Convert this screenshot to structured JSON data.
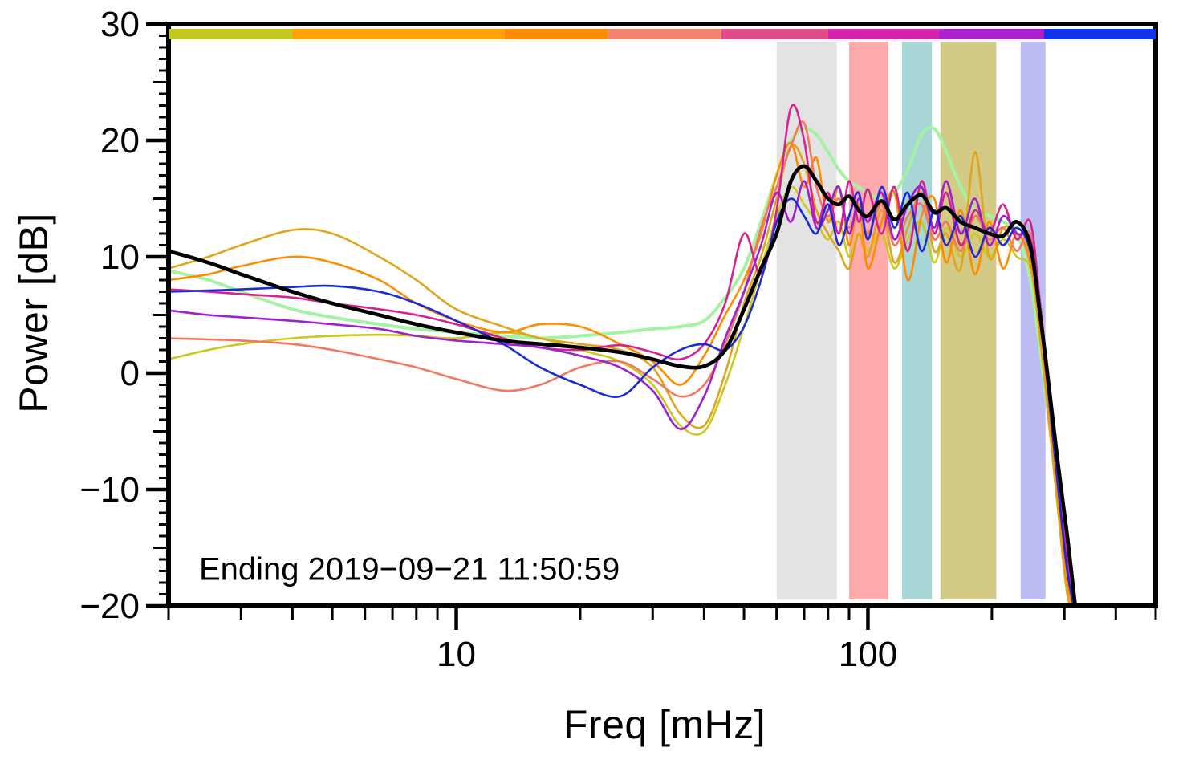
{
  "figure": {
    "xlabel": "Freq [mHz]",
    "ylabel": "Power [dB]",
    "annotation": "Ending 2019−09−21 11:50:59"
  },
  "chart_data": {
    "type": "line",
    "xscale": "log",
    "xlim": [
      2,
      500
    ],
    "ylim": [
      -20,
      30
    ],
    "xlabel": "Freq [mHz]",
    "ylabel": "Power [dB]",
    "annotation": "Ending 2019−09−21 11:50:59",
    "grid": false,
    "legend": "none",
    "x_ticks_labeled": [
      10,
      100
    ],
    "y_ticks_labeled": [
      30,
      20,
      10,
      0,
      -10,
      -20
    ],
    "x": [
      2,
      2.5,
      3,
      4,
      5,
      6.5,
      8,
      10,
      13,
      16,
      20,
      25,
      30,
      35,
      40,
      45,
      50,
      55,
      60,
      65,
      70,
      75,
      80,
      85,
      90,
      95,
      100,
      108,
      116,
      125,
      135,
      145,
      155,
      168,
      182,
      197,
      213,
      230,
      248,
      262,
      275,
      290,
      305,
      320
    ],
    "series": [
      {
        "name": "lightgreen",
        "color": "#a5f2a5",
        "width": 4,
        "y": [
          8.8,
          8.0,
          7.0,
          5.5,
          4.8,
          4.2,
          3.8,
          3.5,
          3.2,
          3.0,
          3.2,
          3.5,
          3.8,
          4.0,
          4.5,
          6.5,
          9.0,
          13.0,
          17.0,
          20.0,
          21.0,
          20.5,
          19.0,
          17.5,
          16.5,
          16.0,
          15.5,
          15.0,
          15.5,
          17.5,
          20.5,
          21.0,
          19.0,
          16.0,
          14.0,
          13.5,
          13.0,
          12.0,
          8.0,
          2.0,
          -4.0,
          -10,
          -16,
          -20.5
        ]
      },
      {
        "name": "yellow",
        "color": "#c9c91e",
        "width": 2.6,
        "y": [
          1.2,
          2.0,
          2.5,
          3.0,
          3.2,
          3.3,
          3.2,
          3.0,
          3.5,
          3.0,
          2.0,
          1.0,
          -1.0,
          -4.5,
          -5.0,
          -1.0,
          4.0,
          9.0,
          13.5,
          16.0,
          14.5,
          13.0,
          11.5,
          13.0,
          10.0,
          12.0,
          10.5,
          12.0,
          9.0,
          11.5,
          13.0,
          9.5,
          12.5,
          10.0,
          12.0,
          10.0,
          11.5,
          10.0,
          9.0,
          3.0,
          -4,
          -12,
          -19,
          -21
        ]
      },
      {
        "name": "goldenrod",
        "color": "#dfa51c",
        "width": 2.6,
        "y": [
          9.0,
          10.0,
          11.0,
          12.3,
          12.0,
          10.0,
          8.0,
          5.5,
          4.0,
          3.0,
          2.5,
          2.0,
          0.5,
          -3.5,
          -4.5,
          0.0,
          6.0,
          10.0,
          15.0,
          19.5,
          18.0,
          14.0,
          12.0,
          10.5,
          9.0,
          12.0,
          10.0,
          14.0,
          9.5,
          12.5,
          15.5,
          10.5,
          12.0,
          9.0,
          19.0,
          10.0,
          12.5,
          12.0,
          10.0,
          3.0,
          -4,
          -12,
          -19,
          -21
        ]
      },
      {
        "name": "orange",
        "color": "#ff8c00",
        "width": 2.6,
        "y": [
          8.0,
          8.5,
          9.2,
          10.0,
          9.5,
          8.0,
          6.0,
          4.5,
          3.5,
          4.2,
          4.0,
          2.5,
          1.0,
          -1.0,
          1.5,
          5.0,
          8.0,
          12.0,
          17.0,
          19.8,
          16.0,
          18.5,
          13.0,
          16.0,
          11.0,
          14.5,
          9.0,
          13.0,
          15.5,
          8.0,
          13.5,
          15.0,
          9.5,
          14.0,
          8.5,
          13.0,
          9.0,
          12.0,
          9.5,
          4.0,
          -3,
          -11,
          -18,
          -21
        ]
      },
      {
        "name": "salmon",
        "color": "#f2785f",
        "width": 2.6,
        "y": [
          3.0,
          2.9,
          2.8,
          2.5,
          2.0,
          1.2,
          0.5,
          -0.5,
          -1.5,
          -1.0,
          0.5,
          1.0,
          -0.5,
          -2.0,
          -1.0,
          2.5,
          7.0,
          12.5,
          16.0,
          19.5,
          21.5,
          16.0,
          13.5,
          15.0,
          12.5,
          14.0,
          12.0,
          14.5,
          11.0,
          13.5,
          14.5,
          11.5,
          13.0,
          10.5,
          13.5,
          11.5,
          12.5,
          10.5,
          12.0,
          5.0,
          -2,
          -10,
          -17,
          -21
        ]
      },
      {
        "name": "magenta",
        "color": "#d6218f",
        "width": 2.6,
        "y": [
          7.2,
          7.0,
          6.8,
          6.5,
          6.0,
          5.5,
          5.0,
          4.2,
          3.0,
          2.2,
          2.0,
          2.4,
          1.8,
          1.2,
          2.5,
          6.0,
          12.0,
          8.5,
          14.0,
          22.8,
          20.0,
          13.0,
          15.5,
          12.0,
          16.5,
          13.0,
          15.8,
          12.0,
          16.0,
          10.5,
          16.5,
          12.0,
          15.5,
          11.0,
          14.0,
          12.0,
          14.5,
          11.5,
          13.0,
          6.0,
          -1,
          -9,
          -16,
          -21
        ]
      },
      {
        "name": "purple",
        "color": "#a020d0",
        "width": 2.6,
        "y": [
          5.4,
          5.0,
          4.8,
          4.5,
          4.2,
          3.8,
          3.2,
          2.8,
          2.5,
          2.2,
          1.5,
          0.5,
          -1.5,
          -4.8,
          -2.0,
          3.0,
          7.0,
          11.0,
          15.5,
          13.0,
          16.5,
          12.5,
          14.0,
          16.0,
          12.0,
          15.0,
          13.0,
          15.5,
          11.5,
          14.5,
          16.0,
          12.5,
          16.5,
          12.0,
          15.0,
          11.0,
          13.5,
          12.0,
          11.5,
          5.5,
          -2,
          -10,
          -17,
          -21
        ]
      },
      {
        "name": "blue",
        "color": "#1c2bd6",
        "width": 2.6,
        "y": [
          7.0,
          7.1,
          7.2,
          7.4,
          7.5,
          7.0,
          6.0,
          4.5,
          2.5,
          0.5,
          -1.0,
          -2.0,
          0.5,
          2.0,
          2.5,
          2.0,
          4.0,
          8.0,
          13.0,
          15.0,
          13.5,
          12.0,
          14.5,
          11.0,
          13.5,
          15.5,
          11.5,
          16.0,
          12.5,
          15.5,
          10.5,
          14.0,
          11.0,
          13.5,
          10.0,
          12.5,
          11.0,
          12.5,
          10.5,
          4.5,
          -2,
          -10,
          -17,
          -21
        ]
      },
      {
        "name": "black-mean",
        "color": "#000000",
        "width": 4.6,
        "y": [
          10.5,
          9.5,
          8.5,
          7.0,
          6.0,
          5.0,
          4.2,
          3.5,
          2.8,
          2.5,
          2.2,
          1.8,
          1.2,
          0.6,
          0.6,
          2.0,
          5.5,
          9.0,
          12.0,
          16.5,
          17.8,
          16.5,
          15.0,
          14.5,
          15.2,
          14.0,
          13.5,
          14.8,
          13.2,
          14.5,
          15.3,
          13.8,
          14.2,
          13.0,
          12.5,
          12.0,
          11.8,
          13.0,
          11.0,
          5.0,
          -1.0,
          -8.0,
          -14.0,
          -20.5
        ]
      }
    ],
    "bands": [
      {
        "name": "band-gray",
        "from": 60,
        "to": 84,
        "color": "#e3e3e3"
      },
      {
        "name": "band-pink",
        "from": 90,
        "to": 112,
        "color": "#ffabab"
      },
      {
        "name": "band-teal",
        "from": 121,
        "to": 143,
        "color": "#a8d6d6"
      },
      {
        "name": "band-khaki",
        "from": 150,
        "to": 205,
        "color": "#d3ca85"
      },
      {
        "name": "band-periwinkle",
        "from": 235,
        "to": 270,
        "color": "#bcbcf2"
      }
    ],
    "colorbar_segments": [
      {
        "color": "#c3c91c",
        "from": 0.0,
        "to": 0.125
      },
      {
        "color": "#ffa300",
        "from": 0.125,
        "to": 0.34
      },
      {
        "color": "#ff8c00",
        "from": 0.34,
        "to": 0.445
      },
      {
        "color": "#f2846e",
        "from": 0.445,
        "to": 0.56
      },
      {
        "color": "#df4a87",
        "from": 0.56,
        "to": 0.668
      },
      {
        "color": "#d621ab",
        "from": 0.668,
        "to": 0.78
      },
      {
        "color": "#aa22cc",
        "from": 0.78,
        "to": 0.887
      },
      {
        "color": "#1133ee",
        "from": 0.887,
        "to": 1.0
      }
    ],
    "frame_color": "#000000"
  }
}
